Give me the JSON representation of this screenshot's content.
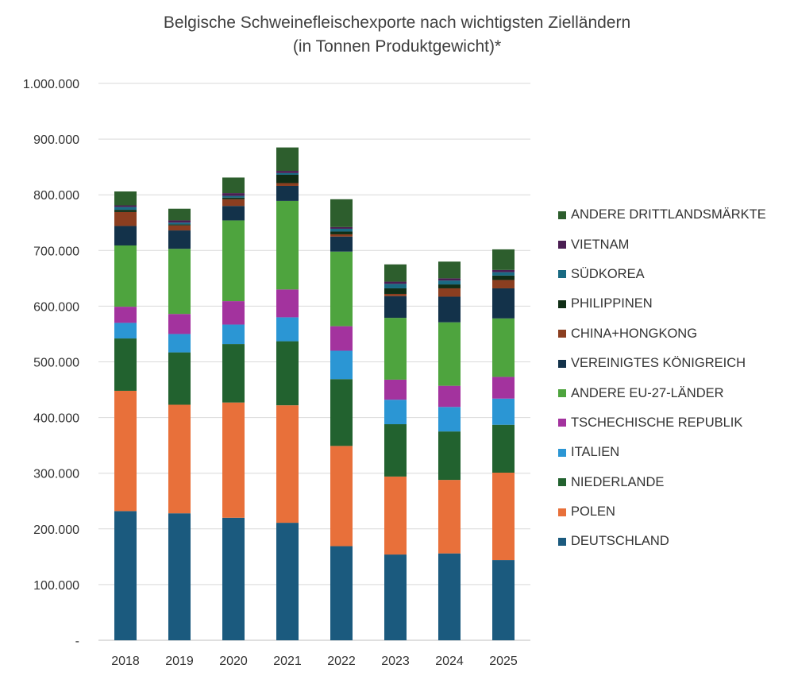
{
  "chart_data": {
    "type": "bar",
    "stacked": true,
    "title": "Belgische Schweinefleischexporte nach wichtigsten Zielländern",
    "subtitle": "(in Tonnen Produktgewicht)*",
    "xlabel": "",
    "ylabel": "",
    "ylim": [
      0,
      1000000
    ],
    "yticks": [
      "-",
      "100.000",
      "200.000",
      "300.000",
      "400.000",
      "500.000",
      "600.000",
      "700.000",
      "800.000",
      "900.000",
      "1.000.000"
    ],
    "grid": true,
    "legend_position": "right",
    "categories": [
      "2018",
      "2019",
      "2020",
      "2021",
      "2022",
      "2023",
      "2024",
      "2025"
    ],
    "series": [
      {
        "name": "DEUTSCHLAND",
        "color": "#1b5a7e",
        "values": [
          232000,
          228000,
          220000,
          211000,
          169000,
          154000,
          156000,
          144000
        ]
      },
      {
        "name": "POLEN",
        "color": "#e8703a",
        "values": [
          216000,
          195000,
          207000,
          211000,
          180000,
          140000,
          132000,
          157000
        ]
      },
      {
        "name": "NIEDERLANDE",
        "color": "#22622f",
        "values": [
          94000,
          94000,
          105000,
          115000,
          120000,
          94000,
          87000,
          86000
        ]
      },
      {
        "name": "ITALIEN",
        "color": "#2b96d4",
        "values": [
          28000,
          33000,
          35000,
          43000,
          51000,
          44000,
          44000,
          47000
        ]
      },
      {
        "name": "TSCHECHISCHE REPUBLIK",
        "color": "#a3339e",
        "values": [
          29000,
          36000,
          42000,
          50000,
          44000,
          36000,
          38000,
          39000
        ]
      },
      {
        "name": "ANDERE EU-27-LÄNDER",
        "color": "#4ea43e",
        "values": [
          110000,
          117000,
          145000,
          159000,
          134000,
          111000,
          114000,
          105000
        ]
      },
      {
        "name": "VEREINIGTES KÖNIGREICH",
        "color": "#13324a",
        "values": [
          35000,
          33000,
          26000,
          27000,
          27000,
          39000,
          46000,
          54000
        ]
      },
      {
        "name": "CHINA+HONGKONG",
        "color": "#8b3e20",
        "values": [
          25000,
          9000,
          12000,
          5000,
          4000,
          4000,
          15000,
          15000
        ]
      },
      {
        "name": "PHILIPPINEN",
        "color": "#102e16",
        "values": [
          4000,
          2000,
          3000,
          15000,
          5000,
          10000,
          7000,
          8000
        ]
      },
      {
        "name": "SÜDKOREA",
        "color": "#196a82",
        "values": [
          5000,
          3000,
          3000,
          3000,
          5000,
          8000,
          7000,
          6000
        ]
      },
      {
        "name": "VIETNAM",
        "color": "#4a1e52",
        "values": [
          3000,
          4000,
          5000,
          4000,
          3000,
          4000,
          4000,
          4000
        ]
      },
      {
        "name": "ANDERE DRITTLANDSMÄRKTE",
        "color": "#2d5e2d",
        "values": [
          25000,
          21000,
          28000,
          42000,
          50000,
          31000,
          30000,
          37000
        ]
      }
    ]
  }
}
